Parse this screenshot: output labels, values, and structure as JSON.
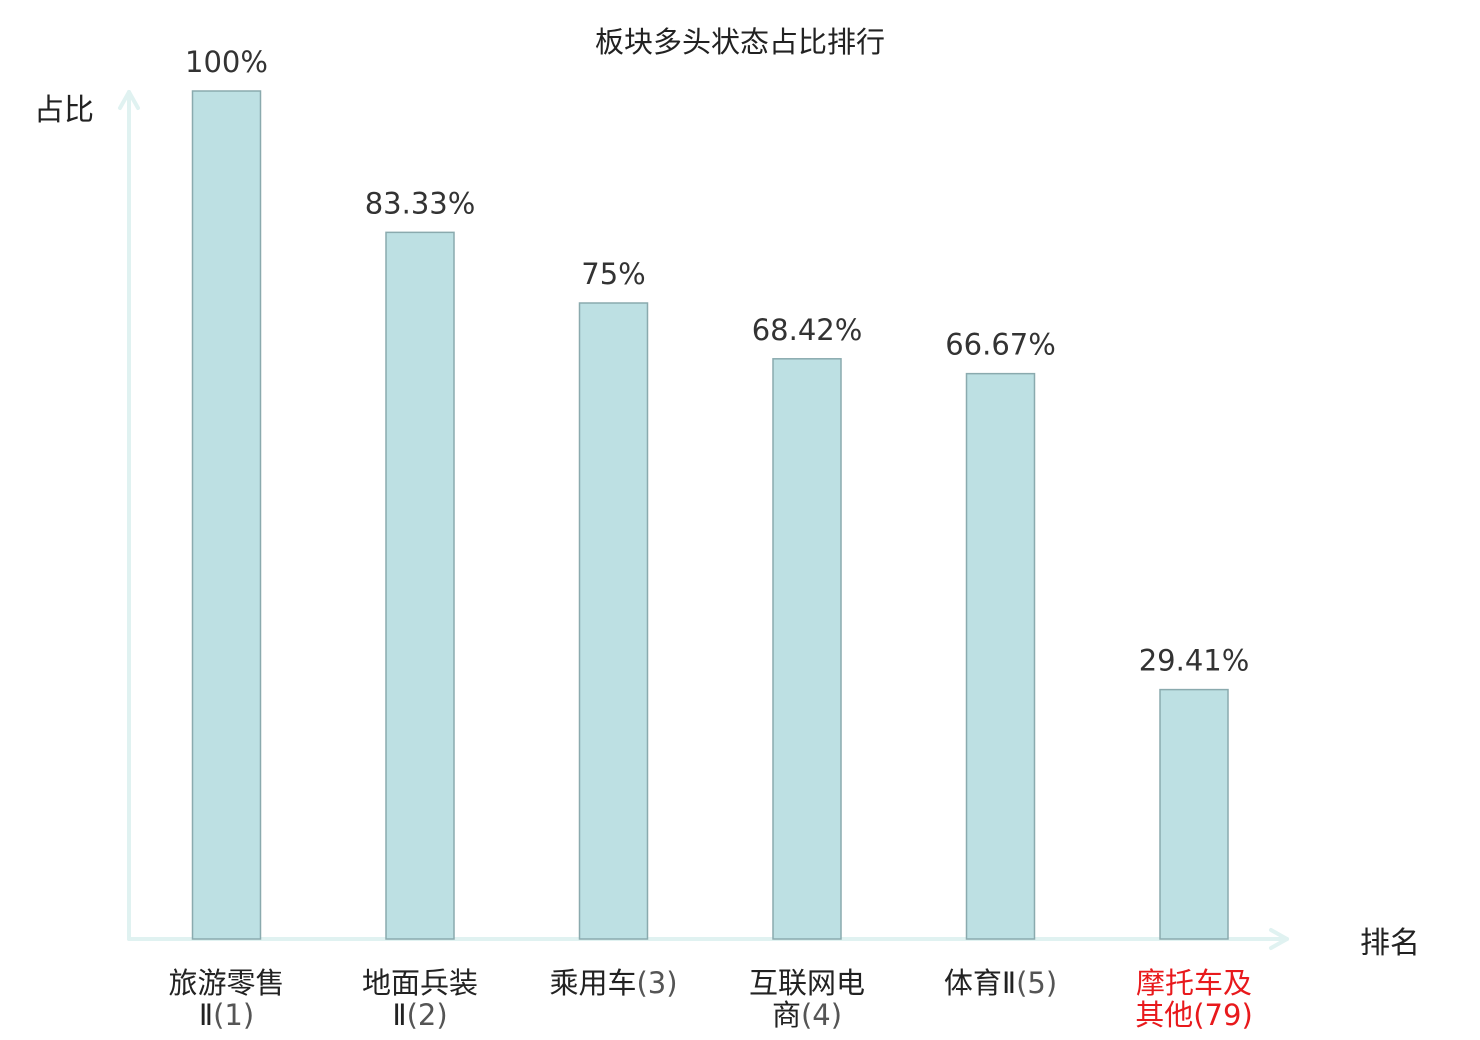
{
  "chart_data": {
    "type": "bar",
    "title": "板块多头状态占比排行",
    "ylabel": "占比",
    "xlabel": "排名",
    "ylim": [
      0,
      100
    ],
    "grid": false,
    "categories": [
      {
        "lines": [
          "旅游零售",
          "Ⅱ"
        ],
        "rank": "(1)",
        "highlight": false
      },
      {
        "lines": [
          "地面兵装",
          "Ⅱ"
        ],
        "rank": "(2)",
        "highlight": false
      },
      {
        "lines": [
          "乘用车"
        ],
        "rank": "(3)",
        "highlight": false
      },
      {
        "lines": [
          "互联网电",
          "商"
        ],
        "rank": "(4)",
        "highlight": false
      },
      {
        "lines": [
          "体育Ⅱ"
        ],
        "rank": "(5)",
        "highlight": false
      },
      {
        "lines": [
          "摩托车及",
          "其他"
        ],
        "rank": "(79)",
        "highlight": true
      }
    ],
    "values": [
      100,
      83.33,
      75,
      68.42,
      66.67,
      29.41
    ],
    "value_labels": [
      "100%",
      "83.33%",
      "75%",
      "68.42%",
      "66.67%",
      "29.41%"
    ],
    "colors": {
      "bar_fill": "#bde0e3",
      "bar_stroke": "#8aaaae",
      "axis": "#e0f2f1",
      "text": "#222222",
      "rank_text": "#555555",
      "highlight": "#e8191c"
    }
  }
}
